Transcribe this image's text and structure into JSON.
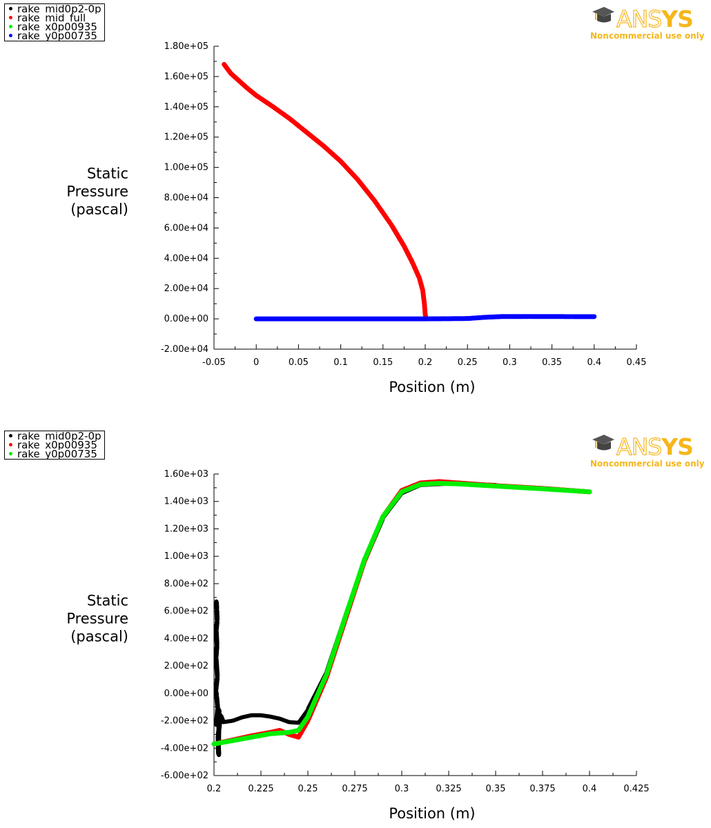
{
  "logo": {
    "brand_prefix": "ANS",
    "brand_suffix": "YS",
    "subtitle": "Noncommercial use only",
    "color": "#f6b61b"
  },
  "chart_data": [
    {
      "type": "scatter",
      "legend": [
        {
          "name": "rake_mid0p2-0p",
          "color": "#000000"
        },
        {
          "name": "rake_mid_full",
          "color": "#ff0000"
        },
        {
          "name": "rake_x0p00935_",
          "color": "#00ee00"
        },
        {
          "name": "rake_y0p00735_",
          "color": "#0000ff"
        }
      ],
      "ylabel_lines": [
        "Static",
        "Pressure",
        "(pascal)"
      ],
      "xlabel": "Position (m)",
      "xlim": [
        -0.05,
        0.45
      ],
      "ylim": [
        -20000,
        180000
      ],
      "xticks": [
        "-0.05",
        "0",
        "0.05",
        "0.1",
        "0.15",
        "0.2",
        "0.25",
        "0.3",
        "0.35",
        "0.4",
        "0.45"
      ],
      "yticks": [
        "-2.00e+04",
        "0.00e+00",
        "2.00e+04",
        "4.00e+04",
        "6.00e+04",
        "8.00e+04",
        "1.00e+05",
        "1.20e+05",
        "1.40e+05",
        "1.60e+05",
        "1.80e+05"
      ],
      "grid": false,
      "series": [
        {
          "name": "rake_mid_full",
          "color": "#ff0000",
          "points": [
            [
              -0.038,
              168000
            ],
            [
              -0.03,
              162000
            ],
            [
              -0.02,
              157000
            ],
            [
              -0.01,
              152000
            ],
            [
              0.0,
              147500
            ],
            [
              0.02,
              140000
            ],
            [
              0.04,
              132000
            ],
            [
              0.06,
              123000
            ],
            [
              0.08,
              114000
            ],
            [
              0.1,
              104000
            ],
            [
              0.12,
              92000
            ],
            [
              0.14,
              78000
            ],
            [
              0.16,
              62000
            ],
            [
              0.175,
              48000
            ],
            [
              0.185,
              37000
            ],
            [
              0.193,
              27000
            ],
            [
              0.197,
              19000
            ],
            [
              0.199,
              10000
            ],
            [
              0.2,
              3000
            ],
            [
              0.201,
              0
            ]
          ]
        },
        {
          "name": "rake_y0p00735_",
          "color": "#0000ff",
          "points": [
            [
              0.0,
              0
            ],
            [
              0.05,
              0
            ],
            [
              0.1,
              0
            ],
            [
              0.15,
              0
            ],
            [
              0.2,
              0
            ],
            [
              0.25,
              200
            ],
            [
              0.27,
              1000
            ],
            [
              0.29,
              1500
            ],
            [
              0.32,
              1550
            ],
            [
              0.36,
              1500
            ],
            [
              0.4,
              1470
            ]
          ]
        }
      ]
    },
    {
      "type": "scatter",
      "legend": [
        {
          "name": "rake_mid0p2-0p",
          "color": "#000000"
        },
        {
          "name": "rake_x0p00935_",
          "color": "#ff0000"
        },
        {
          "name": "rake_y0p00735_",
          "color": "#00ee00"
        }
      ],
      "ylabel_lines": [
        "Static",
        "Pressure",
        "(pascal)"
      ],
      "xlabel": "Position (m)",
      "xlim": [
        0.2,
        0.425
      ],
      "ylim": [
        -600,
        1600
      ],
      "xticks": [
        "0.2",
        "0.225",
        "0.25",
        "0.275",
        "0.3",
        "0.325",
        "0.35",
        "0.375",
        "0.4",
        "0.425"
      ],
      "yticks": [
        "-6.00e+02",
        "-4.00e+02",
        "-2.00e+02",
        "0.00e+00",
        "2.00e+02",
        "4.00e+02",
        "6.00e+02",
        "8.00e+02",
        "1.00e+03",
        "1.20e+03",
        "1.40e+03",
        "1.60e+03"
      ],
      "grid": false,
      "series": [
        {
          "name": "rake_mid0p2-0p",
          "color": "#000000",
          "points": [
            [
              0.2013,
              670
            ],
            [
              0.2015,
              610
            ],
            [
              0.2017,
              530
            ],
            [
              0.2012,
              460
            ],
            [
              0.2016,
              350
            ],
            [
              0.2011,
              260
            ],
            [
              0.2018,
              120
            ],
            [
              0.201,
              20
            ],
            [
              0.2014,
              -20
            ],
            [
              0.202,
              -110
            ],
            [
              0.2012,
              -230
            ],
            [
              0.2023,
              -190
            ],
            [
              0.2027,
              -120
            ],
            [
              0.2025,
              -350
            ],
            [
              0.2022,
              -420
            ],
            [
              0.2026,
              -450
            ],
            [
              0.2021,
              -310
            ],
            [
              0.203,
              -230
            ],
            [
              0.2035,
              -160
            ],
            [
              0.205,
              -210
            ],
            [
              0.21,
              -200
            ],
            [
              0.215,
              -175
            ],
            [
              0.22,
              -160
            ],
            [
              0.225,
              -160
            ],
            [
              0.23,
              -170
            ],
            [
              0.235,
              -185
            ],
            [
              0.24,
              -210
            ],
            [
              0.245,
              -215
            ],
            [
              0.25,
              -120
            ],
            [
              0.26,
              150
            ],
            [
              0.27,
              560
            ],
            [
              0.28,
              960
            ],
            [
              0.29,
              1280
            ],
            [
              0.3,
              1460
            ],
            [
              0.31,
              1520
            ],
            [
              0.325,
              1530
            ],
            [
              0.35,
              1520
            ]
          ]
        },
        {
          "name": "rake_x0p00935_",
          "color": "#ff0000",
          "points": [
            [
              0.2,
              -370
            ],
            [
              0.21,
              -340
            ],
            [
              0.22,
              -310
            ],
            [
              0.23,
              -285
            ],
            [
              0.235,
              -270
            ],
            [
              0.24,
              -300
            ],
            [
              0.245,
              -320
            ],
            [
              0.25,
              -200
            ],
            [
              0.26,
              120
            ],
            [
              0.27,
              540
            ],
            [
              0.28,
              960
            ],
            [
              0.29,
              1290
            ],
            [
              0.3,
              1480
            ],
            [
              0.31,
              1535
            ],
            [
              0.32,
              1545
            ],
            [
              0.33,
              1535
            ],
            [
              0.35,
              1515
            ],
            [
              0.375,
              1495
            ],
            [
              0.4,
              1470
            ]
          ]
        },
        {
          "name": "rake_y0p00735_",
          "color": "#00ee00",
          "points": [
            [
              0.2,
              -370
            ],
            [
              0.21,
              -345
            ],
            [
              0.22,
              -320
            ],
            [
              0.23,
              -295
            ],
            [
              0.24,
              -285
            ],
            [
              0.245,
              -270
            ],
            [
              0.25,
              -170
            ],
            [
              0.26,
              140
            ],
            [
              0.27,
              560
            ],
            [
              0.28,
              970
            ],
            [
              0.29,
              1290
            ],
            [
              0.3,
              1470
            ],
            [
              0.31,
              1525
            ],
            [
              0.32,
              1532
            ],
            [
              0.33,
              1528
            ],
            [
              0.35,
              1512
            ],
            [
              0.375,
              1492
            ],
            [
              0.4,
              1470
            ]
          ]
        }
      ]
    }
  ]
}
